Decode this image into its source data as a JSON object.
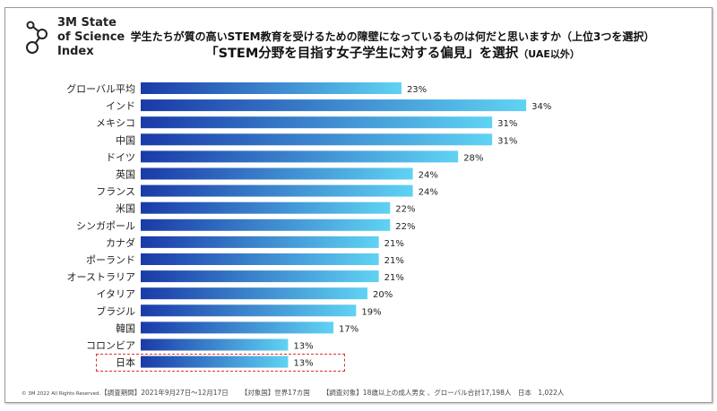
{
  "logo": {
    "lines": [
      "3M State",
      "of Science",
      "Index"
    ]
  },
  "title": {
    "line1": "学生たちが質の高いSTEM教育を受けるための障壁になっているものは何だと思いますか（上位3つを選択）",
    "line2": "「STEM分野を目指す女子学生に対する偏見」を選択",
    "line2_note": "（UAE以外）"
  },
  "chart_data": {
    "type": "bar",
    "orientation": "horizontal",
    "categories": [
      "グローバル平均",
      "インド",
      "メキシコ",
      "中国",
      "ドイツ",
      "英国",
      "フランス",
      "米国",
      "シンガポール",
      "カナダ",
      "ポーランド",
      "オーストラリア",
      "イタリア",
      "ブラジル",
      "韓国",
      "コロンビア",
      "日本"
    ],
    "values": [
      23,
      34,
      31,
      31,
      28,
      24,
      24,
      22,
      22,
      21,
      21,
      21,
      20,
      19,
      17,
      13,
      13
    ],
    "unit": "%",
    "highlight": "日本",
    "xlim": [
      0,
      34
    ],
    "colors": {
      "gradient_start": "#1a3aa8",
      "gradient_end": "#5fd3f3",
      "highlight_border": "#e03030"
    }
  },
  "footer": {
    "copyright": "© 3M 2022",
    "rights": "All Rights Reserved.",
    "period": "【調査期間】2021年9月27日～12月17日",
    "countries": "【対象国】世界17カ国",
    "subjects": "【調査対象】18歳以上の成人男女 、グローバル合計17,198人　日本　1,022人"
  }
}
